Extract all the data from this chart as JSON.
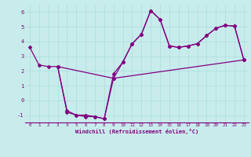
{
  "title": "",
  "xlabel": "Windchill (Refroidissement éolien,°C)",
  "background_color": "#c8ecec",
  "line_color": "#800080",
  "xlim": [
    -0.5,
    23.5
  ],
  "ylim": [
    -1.5,
    6.5
  ],
  "xticks": [
    0,
    1,
    2,
    3,
    4,
    5,
    6,
    7,
    8,
    9,
    10,
    11,
    12,
    13,
    14,
    15,
    16,
    17,
    18,
    19,
    20,
    21,
    22,
    23
  ],
  "yticks": [
    -1,
    0,
    1,
    2,
    3,
    4,
    5,
    6
  ],
  "grid_color": "#aadddd",
  "line1": [
    [
      0,
      3.6
    ],
    [
      1,
      2.4
    ],
    [
      2,
      2.3
    ],
    [
      3,
      2.3
    ],
    [
      4,
      -0.7
    ],
    [
      5,
      -1.0
    ],
    [
      6,
      -1.1
    ],
    [
      7,
      -1.1
    ],
    [
      8,
      -1.25
    ],
    [
      9,
      1.5
    ],
    [
      10,
      2.6
    ],
    [
      11,
      3.85
    ],
    [
      12,
      4.5
    ],
    [
      13,
      6.1
    ],
    [
      14,
      5.5
    ],
    [
      15,
      3.7
    ],
    [
      16,
      3.6
    ],
    [
      17,
      3.7
    ],
    [
      18,
      3.85
    ],
    [
      19,
      4.4
    ],
    [
      20,
      4.9
    ],
    [
      21,
      5.1
    ],
    [
      22,
      5.05
    ],
    [
      23,
      2.75
    ]
  ],
  "line2": [
    [
      3,
      2.3
    ],
    [
      4,
      -0.8
    ],
    [
      5,
      -1.0
    ],
    [
      6,
      -1.0
    ],
    [
      7,
      -1.1
    ],
    [
      8,
      -1.25
    ],
    [
      9,
      1.8
    ],
    [
      10,
      2.6
    ],
    [
      11,
      3.85
    ],
    [
      12,
      4.5
    ],
    [
      13,
      6.1
    ],
    [
      14,
      5.5
    ],
    [
      15,
      3.7
    ],
    [
      16,
      3.6
    ],
    [
      17,
      3.7
    ],
    [
      18,
      3.85
    ],
    [
      19,
      4.4
    ],
    [
      20,
      4.9
    ],
    [
      21,
      5.1
    ],
    [
      22,
      5.05
    ],
    [
      23,
      2.75
    ]
  ],
  "line3": [
    [
      3,
      2.3
    ],
    [
      9,
      1.5
    ],
    [
      23,
      2.75
    ]
  ]
}
